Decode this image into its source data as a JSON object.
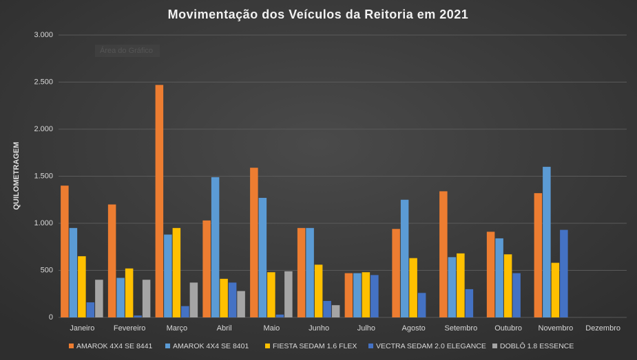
{
  "chart_data": {
    "type": "bar",
    "title": "Movimentação dos Veículos da Reitoria em 2021",
    "y_label": "QUILOMETRAGEM",
    "annotation": "Área do Gráfico",
    "categories": [
      "Janeiro",
      "Fevereiro",
      "Março",
      "Abril",
      "Maio",
      "Junho",
      "Julho",
      "Agosto",
      "Setembro",
      "Outubro",
      "Novembro",
      "Dezembro"
    ],
    "series": [
      {
        "name": "AMAROK 4X4 SE 8441",
        "color": "#ED7D31",
        "values": [
          1400,
          1200,
          2470,
          1030,
          1590,
          950,
          470,
          940,
          1340,
          910,
          1320,
          null
        ]
      },
      {
        "name": "AMAROK 4X4 SE 8401",
        "color": "#5B9BD5",
        "values": [
          950,
          420,
          880,
          1490,
          1270,
          950,
          470,
          1250,
          640,
          840,
          1600,
          null
        ]
      },
      {
        "name": "FIESTA SEDAM 1.6 FLEX",
        "color": "#FFC000",
        "values": [
          650,
          520,
          950,
          410,
          480,
          560,
          480,
          630,
          680,
          670,
          580,
          null
        ]
      },
      {
        "name": "VECTRA SEDAM 2.0 ELEGANCE",
        "color": "#4472C4",
        "values": [
          160,
          20,
          120,
          370,
          30,
          175,
          450,
          260,
          300,
          470,
          930,
          null
        ]
      },
      {
        "name": "DOBLÔ 1.8 ESSENCE",
        "color": "#A5A5A5",
        "values": [
          400,
          400,
          370,
          280,
          490,
          130,
          null,
          null,
          null,
          null,
          null,
          null
        ]
      }
    ],
    "ylim": [
      0,
      3000
    ],
    "yticks": [
      {
        "value": 0,
        "label": "0"
      },
      {
        "value": 500,
        "label": "500"
      },
      {
        "value": 1000,
        "label": "1.000"
      },
      {
        "value": 1500,
        "label": "1.500"
      },
      {
        "value": 2000,
        "label": "2.000"
      },
      {
        "value": 2500,
        "label": "2.500"
      },
      {
        "value": 3000,
        "label": "3.000"
      }
    ],
    "grid": true,
    "legend": "bottom"
  }
}
